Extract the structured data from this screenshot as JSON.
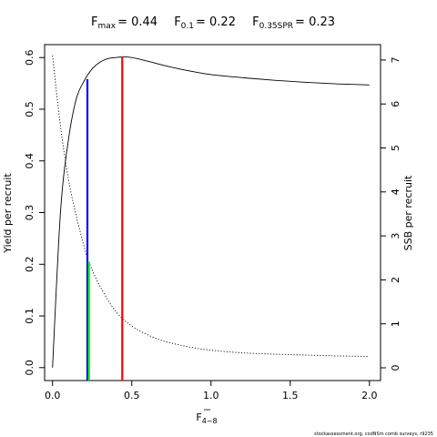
{
  "chart_data": {
    "type": "line",
    "title": {
      "fmax_base": "F",
      "fmax_sub": "max",
      "fmax_value": "= 0.44",
      "f01_base": "F",
      "f01_sub": "0.1",
      "f01_value": "= 0.22",
      "fspr_base": "F",
      "fspr_sub": "0.35SPR",
      "fspr_value": "= 0.23"
    },
    "xlabel": {
      "base": "F",
      "sub": "4−8"
    },
    "ylabel_left": "Yield per recruit",
    "ylabel_right": "SSB per recruit",
    "xlim": [
      -0.05,
      2.07
    ],
    "ylim_left": [
      -0.025,
      0.625
    ],
    "ylim_right": [
      -0.29,
      7.35
    ],
    "x_ticks": [
      0.0,
      0.5,
      1.0,
      1.5,
      2.0
    ],
    "x_tick_labels": [
      "0.0",
      "0.5",
      "1.0",
      "1.5",
      "2.0"
    ],
    "y_left_ticks": [
      0.0,
      0.1,
      0.2,
      0.3,
      0.4,
      0.5,
      0.6
    ],
    "y_left_tick_labels": [
      "0.0",
      "0.1",
      "0.2",
      "0.3",
      "0.4",
      "0.5",
      "0.6"
    ],
    "y_right_ticks": [
      0,
      1,
      2,
      3,
      4,
      5,
      6,
      7
    ],
    "y_right_tick_labels": [
      "0",
      "1",
      "2",
      "3",
      "4",
      "5",
      "6",
      "7"
    ],
    "series": [
      {
        "axis": "left",
        "style": "solid",
        "color": "#000000",
        "x": [
          0.0,
          0.05,
          0.1,
          0.15,
          0.2,
          0.25,
          0.3,
          0.35,
          0.4,
          0.44,
          0.5,
          0.6,
          0.7,
          0.8,
          0.9,
          1.0,
          1.2,
          1.4,
          1.6,
          1.8,
          2.0
        ],
        "y": [
          0.0,
          0.3,
          0.44,
          0.52,
          0.555,
          0.578,
          0.591,
          0.598,
          0.6,
          0.601,
          0.6,
          0.593,
          0.585,
          0.578,
          0.572,
          0.567,
          0.561,
          0.556,
          0.552,
          0.549,
          0.547
        ]
      },
      {
        "axis": "right",
        "style": "dotted",
        "color": "#000000",
        "x": [
          0.0,
          0.05,
          0.1,
          0.15,
          0.2,
          0.23,
          0.3,
          0.4,
          0.5,
          0.6,
          0.7,
          0.8,
          0.9,
          1.0,
          1.2,
          1.4,
          1.6,
          1.8,
          2.0
        ],
        "y": [
          7.1,
          5.5,
          4.3,
          3.45,
          2.75,
          2.4,
          1.85,
          1.28,
          0.95,
          0.75,
          0.61,
          0.52,
          0.45,
          0.4,
          0.34,
          0.31,
          0.29,
          0.27,
          0.26
        ]
      }
    ],
    "reference_lines": [
      {
        "label": "Fmax",
        "x": 0.44,
        "y": 0.601,
        "color": "#ff0000"
      },
      {
        "label": "F0.1",
        "x": 0.22,
        "y": 0.558,
        "color": "#0000ff"
      },
      {
        "label": "F0.35SPR",
        "x": 0.23,
        "y": 0.205,
        "color": "#00ff00"
      }
    ],
    "grid": false,
    "legend": "none"
  },
  "footer": "stockassessment.org, codNSm comb surveys, r9235"
}
